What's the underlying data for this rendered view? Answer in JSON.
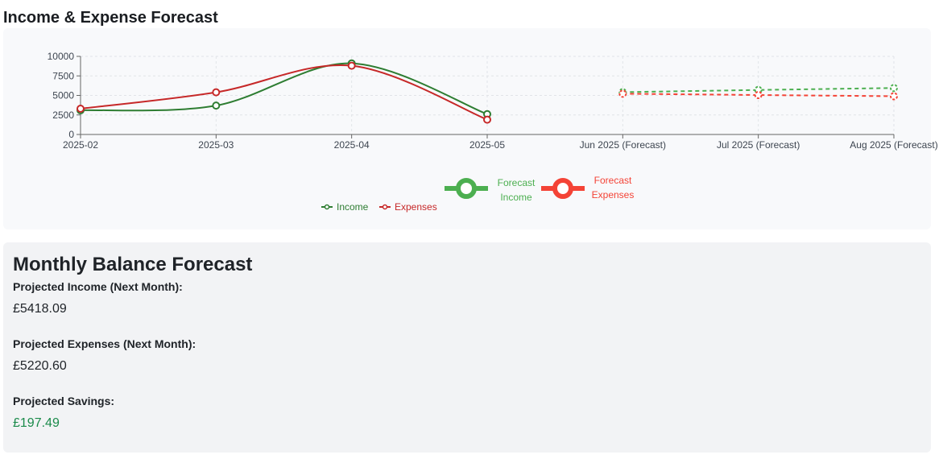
{
  "page": {
    "title": "Income & Expense Forecast"
  },
  "colors": {
    "income": "#2e7d32",
    "expenses": "#c62828",
    "forecast_income": "#4caf50",
    "forecast_expenses": "#f44336",
    "savings_value": "#1a8a4a"
  },
  "chart_data": {
    "type": "line",
    "categories": [
      "2025-02",
      "2025-03",
      "2025-04",
      "2025-05",
      "Jun 2025 (Forecast)",
      "Jul 2025 (Forecast)",
      "Aug 2025 (Forecast)"
    ],
    "ylim": [
      0,
      10000
    ],
    "yticks": [
      0,
      2500,
      5000,
      7500,
      10000
    ],
    "grid": true,
    "legend_placement": "bottom-center",
    "series": [
      {
        "name": "Income",
        "style": "solid",
        "smooth": true,
        "values": [
          3100,
          3700,
          9100,
          2600,
          null,
          null,
          null
        ]
      },
      {
        "name": "Expenses",
        "style": "solid",
        "smooth": true,
        "values": [
          3300,
          5400,
          8800,
          1900,
          null,
          null,
          null
        ]
      },
      {
        "name": "Forecast Income",
        "style": "dashed",
        "values": [
          null,
          null,
          null,
          null,
          5418.09,
          5700,
          5950
        ]
      },
      {
        "name": "Forecast Expenses",
        "style": "dashed",
        "values": [
          null,
          null,
          null,
          null,
          5220.6,
          5050,
          4900
        ]
      }
    ],
    "legend": {
      "income": "Income",
      "expenses": "Expenses",
      "forecast_income_lines": [
        "Forecast",
        "Income"
      ],
      "forecast_expenses_lines": [
        "Forecast",
        "Expenses"
      ]
    }
  },
  "balance": {
    "title": "Monthly Balance Forecast",
    "income_label": "Projected Income (Next Month):",
    "income_value": "£5418.09",
    "expenses_label": "Projected Expenses (Next Month):",
    "expenses_value": "£5220.60",
    "savings_label": "Projected Savings:",
    "savings_value": "£197.49"
  }
}
